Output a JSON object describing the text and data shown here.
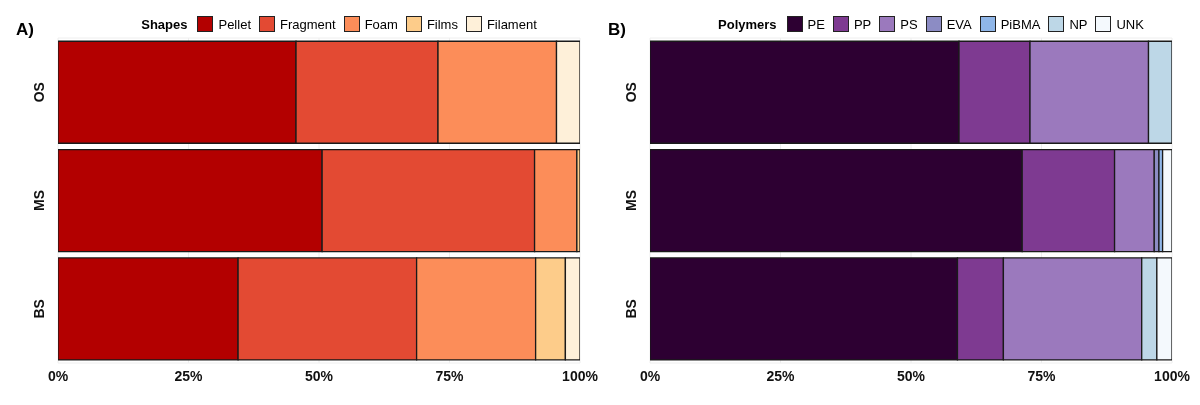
{
  "chart_data": [
    {
      "type": "bar",
      "title": "A)",
      "legend_title": "Shapes",
      "orientation": "horizontal",
      "stacked": true,
      "categories": [
        "OS",
        "MS",
        "BS"
      ],
      "series": [
        {
          "name": "Pellet",
          "color": "#b30000",
          "values": [
            45.6,
            50.6,
            34.5
          ]
        },
        {
          "name": "Fragment",
          "color": "#e34a33",
          "values": [
            27.2,
            40.7,
            34.2
          ]
        },
        {
          "name": "Foam",
          "color": "#fc8d59",
          "values": [
            22.7,
            8.1,
            22.8
          ]
        },
        {
          "name": "Films",
          "color": "#fdcc8a",
          "values": [
            0,
            0.6,
            5.7
          ]
        },
        {
          "name": "Filament",
          "color": "#fef0d9",
          "values": [
            4.5,
            0,
            2.8
          ]
        }
      ],
      "xlim": [
        0,
        100
      ],
      "xticks": [
        {
          "value": 0,
          "label": "0%"
        },
        {
          "value": 25,
          "label": "25%"
        },
        {
          "value": 50,
          "label": "50%"
        },
        {
          "value": 75,
          "label": "75%"
        },
        {
          "value": 100,
          "label": "100%"
        }
      ],
      "grid": true,
      "legend": "top"
    },
    {
      "type": "bar",
      "title": "B)",
      "legend_title": "Polymers",
      "orientation": "horizontal",
      "stacked": true,
      "categories": [
        "OS",
        "MS",
        "BS"
      ],
      "series": [
        {
          "name": "PE",
          "color": "#2d0032",
          "values": [
            59.2,
            71.3,
            58.9
          ]
        },
        {
          "name": "PP",
          "color": "#7e3a91",
          "values": [
            13.6,
            17.7,
            8.8
          ]
        },
        {
          "name": "PS",
          "color": "#9b79bd",
          "values": [
            22.7,
            7.6,
            26.5
          ]
        },
        {
          "name": "EVA",
          "color": "#8c8cc4",
          "values": [
            0,
            0.9,
            0
          ]
        },
        {
          "name": "PiBMA",
          "color": "#8fb6e8",
          "values": [
            0,
            0.7,
            0
          ]
        },
        {
          "name": "NP",
          "color": "#bdd7e7",
          "values": [
            4.5,
            0,
            2.9
          ]
        },
        {
          "name": "UNK",
          "color": "#f4f9fd",
          "values": [
            0,
            1.8,
            2.9
          ]
        }
      ],
      "xlim": [
        0,
        100
      ],
      "xticks": [
        {
          "value": 0,
          "label": "0%"
        },
        {
          "value": 25,
          "label": "25%"
        },
        {
          "value": 50,
          "label": "50%"
        },
        {
          "value": 75,
          "label": "75%"
        },
        {
          "value": 100,
          "label": "100%"
        }
      ],
      "grid": true,
      "legend": "top"
    }
  ]
}
